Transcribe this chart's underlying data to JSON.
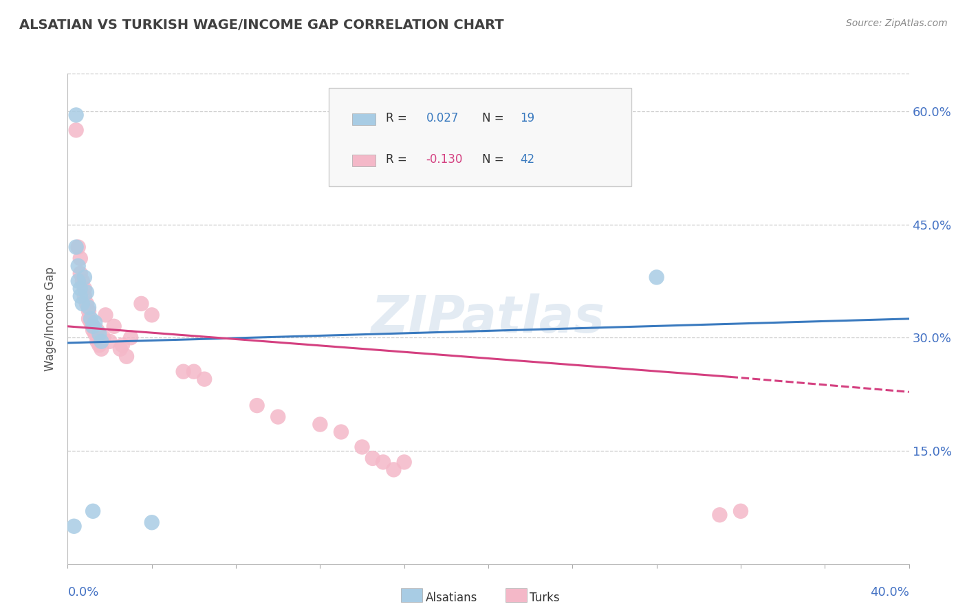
{
  "title": "ALSATIAN VS TURKISH WAGE/INCOME GAP CORRELATION CHART",
  "source": "Source: ZipAtlas.com",
  "ylabel": "Wage/Income Gap",
  "xmin": 0.0,
  "xmax": 0.4,
  "ymin": 0.0,
  "ymax": 0.65,
  "yticks": [
    0.15,
    0.3,
    0.45,
    0.6
  ],
  "ytick_labels": [
    "15.0%",
    "30.0%",
    "45.0%",
    "60.0%"
  ],
  "watermark": "ZIPatlas",
  "blue_color": "#a8cce4",
  "pink_color": "#f4b8c8",
  "blue_line_color": "#3a7abf",
  "pink_line_color": "#d44080",
  "alsatian_points": [
    [
      0.004,
      0.595
    ],
    [
      0.004,
      0.42
    ],
    [
      0.005,
      0.395
    ],
    [
      0.005,
      0.375
    ],
    [
      0.006,
      0.365
    ],
    [
      0.006,
      0.355
    ],
    [
      0.007,
      0.345
    ],
    [
      0.008,
      0.38
    ],
    [
      0.009,
      0.36
    ],
    [
      0.01,
      0.34
    ],
    [
      0.011,
      0.325
    ],
    [
      0.012,
      0.315
    ],
    [
      0.013,
      0.32
    ],
    [
      0.015,
      0.305
    ],
    [
      0.016,
      0.295
    ],
    [
      0.28,
      0.38
    ],
    [
      0.012,
      0.07
    ],
    [
      0.04,
      0.055
    ],
    [
      0.003,
      0.05
    ]
  ],
  "turkish_points": [
    [
      0.004,
      0.575
    ],
    [
      0.005,
      0.42
    ],
    [
      0.006,
      0.405
    ],
    [
      0.006,
      0.385
    ],
    [
      0.007,
      0.375
    ],
    [
      0.008,
      0.365
    ],
    [
      0.008,
      0.355
    ],
    [
      0.009,
      0.345
    ],
    [
      0.01,
      0.335
    ],
    [
      0.01,
      0.325
    ],
    [
      0.011,
      0.32
    ],
    [
      0.012,
      0.315
    ],
    [
      0.012,
      0.31
    ],
    [
      0.013,
      0.305
    ],
    [
      0.014,
      0.31
    ],
    [
      0.014,
      0.295
    ],
    [
      0.015,
      0.29
    ],
    [
      0.016,
      0.285
    ],
    [
      0.017,
      0.3
    ],
    [
      0.018,
      0.33
    ],
    [
      0.02,
      0.295
    ],
    [
      0.022,
      0.315
    ],
    [
      0.025,
      0.285
    ],
    [
      0.026,
      0.29
    ],
    [
      0.028,
      0.275
    ],
    [
      0.03,
      0.3
    ],
    [
      0.035,
      0.345
    ],
    [
      0.04,
      0.33
    ],
    [
      0.055,
      0.255
    ],
    [
      0.06,
      0.255
    ],
    [
      0.065,
      0.245
    ],
    [
      0.09,
      0.21
    ],
    [
      0.1,
      0.195
    ],
    [
      0.12,
      0.185
    ],
    [
      0.13,
      0.175
    ],
    [
      0.14,
      0.155
    ],
    [
      0.145,
      0.14
    ],
    [
      0.15,
      0.135
    ],
    [
      0.155,
      0.125
    ],
    [
      0.16,
      0.135
    ],
    [
      0.31,
      0.065
    ],
    [
      0.32,
      0.07
    ]
  ],
  "blue_line": {
    "x_start": 0.0,
    "x_end": 0.4,
    "y_start": 0.293,
    "y_end": 0.325
  },
  "pink_line_solid": {
    "x_start": 0.0,
    "x_end": 0.315,
    "y_start": 0.315,
    "y_end": 0.248
  },
  "pink_line_dashed": {
    "x_start": 0.315,
    "x_end": 0.4,
    "y_start": 0.248,
    "y_end": 0.228
  },
  "background_color": "#ffffff",
  "grid_color": "#cccccc",
  "title_color": "#404040",
  "axis_label_color": "#4472c4"
}
